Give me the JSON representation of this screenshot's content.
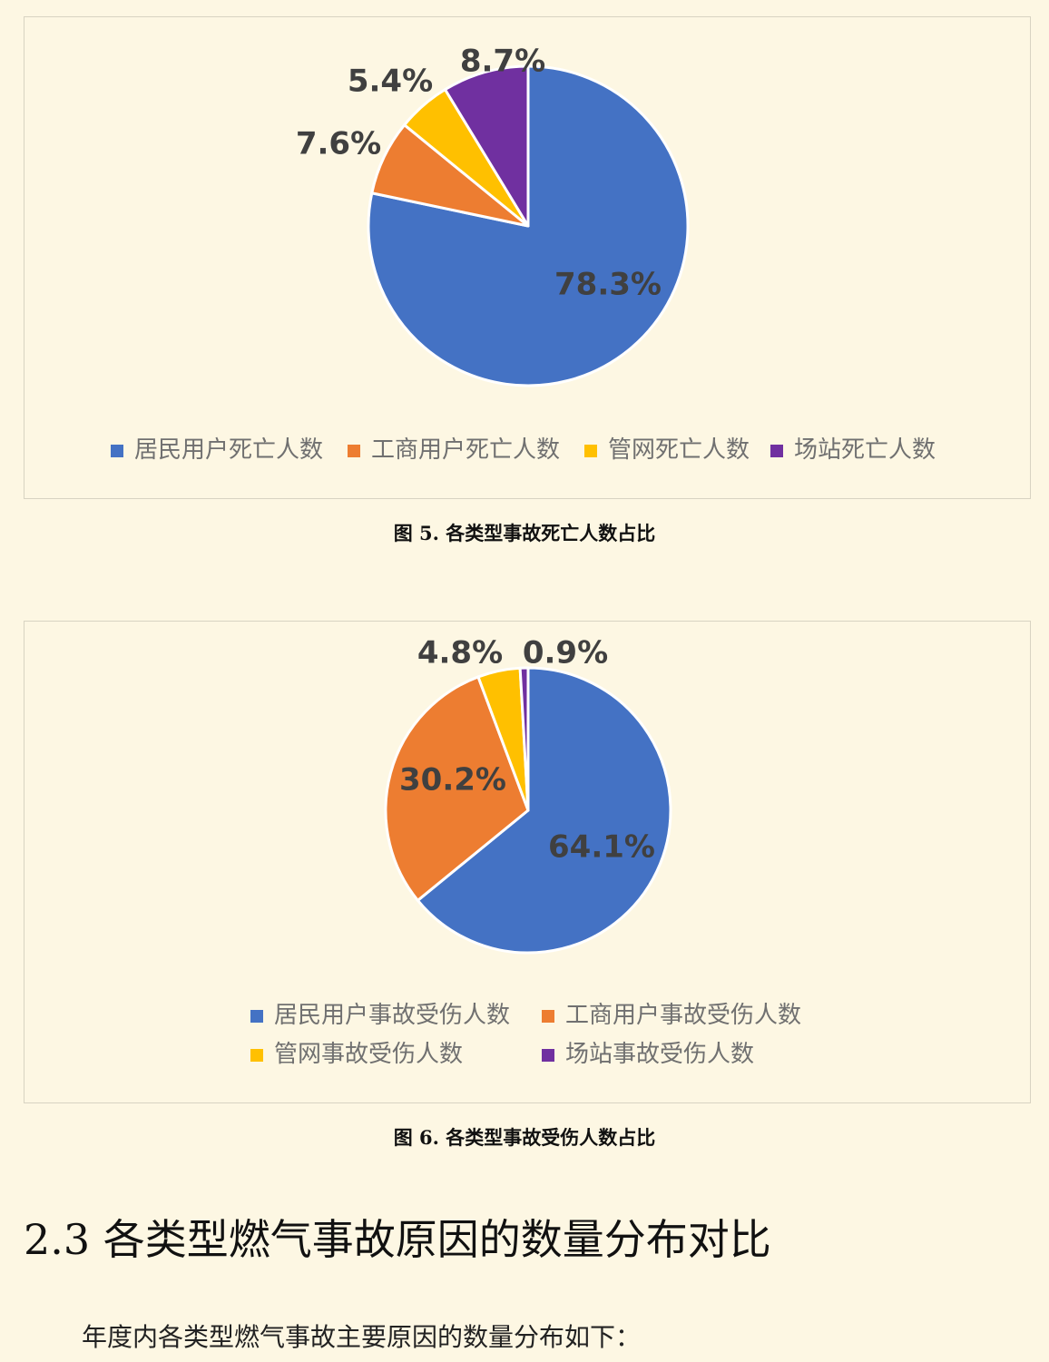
{
  "chart_data": [
    {
      "type": "pie",
      "categories": [
        "居民用户死亡人数",
        "工商用户死亡人数",
        "管网死亡人数",
        "场站死亡人数"
      ],
      "values": [
        78.3,
        7.6,
        5.4,
        8.7
      ],
      "labels": [
        "78.3%",
        "7.6%",
        "5.4%",
        "8.7%"
      ],
      "colors": [
        "#4472c4",
        "#ed7d31",
        "#ffc000",
        "#7030a0"
      ],
      "legend_position": "bottom"
    },
    {
      "type": "pie",
      "categories": [
        "居民用户事故受伤人数",
        "工商用户事故受伤人数",
        "管网事故受伤人数",
        "场站事故受伤人数"
      ],
      "values": [
        64.1,
        30.2,
        4.8,
        0.9
      ],
      "labels": [
        "64.1%",
        "30.2%",
        "4.8%",
        "0.9%"
      ],
      "colors": [
        "#4472c4",
        "#ed7d31",
        "#ffc000",
        "#7030a0"
      ],
      "legend_position": "bottom"
    }
  ],
  "captions": {
    "figure5": "图 5.  各类型事故死亡人数占比",
    "figure6": "图 6.  各类型事故受伤人数占比"
  },
  "section": {
    "heading": "2.3 各类型燃气事故原因的数量分布对比",
    "intro": "年度内各类型燃气事故主要原因的数量分布如下："
  }
}
